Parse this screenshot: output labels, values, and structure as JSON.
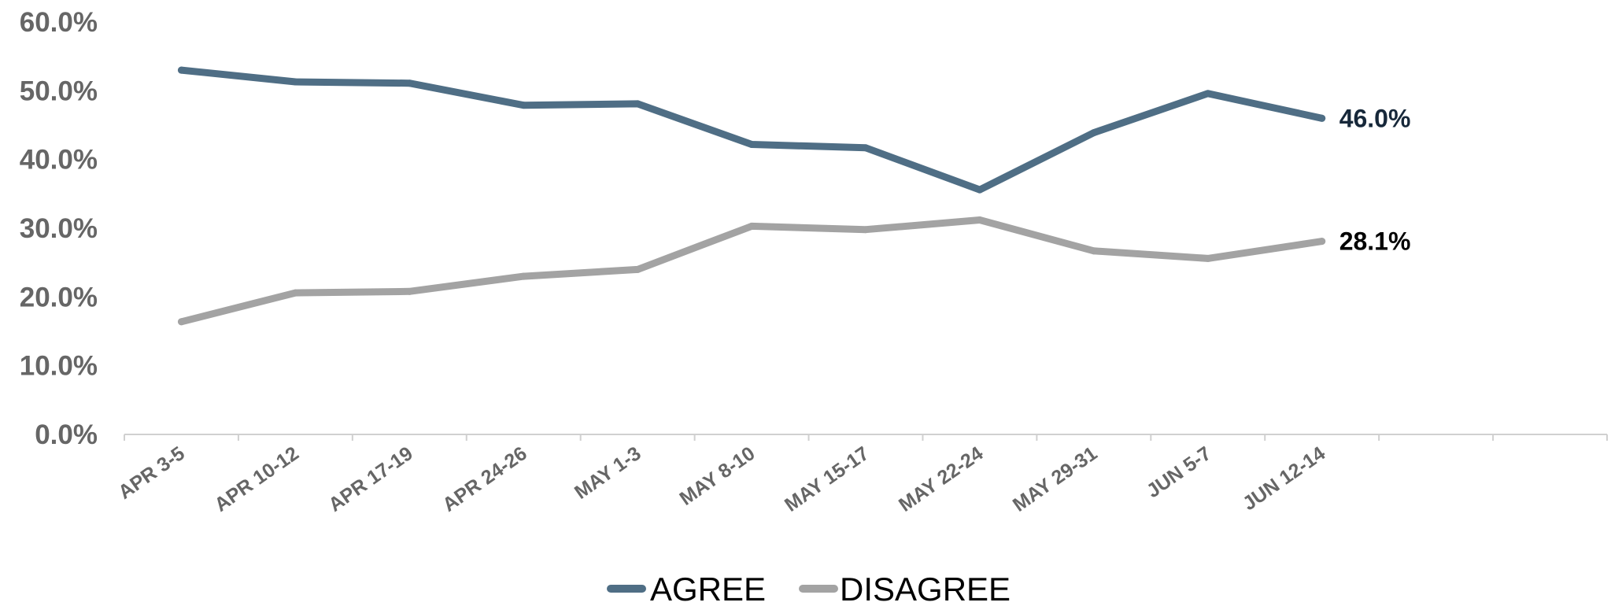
{
  "chart_data": {
    "type": "line",
    "title": "",
    "xlabel": "",
    "ylabel": "",
    "categories": [
      "APR 3-5",
      "APR 10-12",
      "APR 17-19",
      "APR 24-26",
      "MAY 1-3",
      "MAY 8-10",
      "MAY 15-17",
      "MAY 22-24",
      "MAY 29-31",
      "JUN 5-7",
      "JUN 12-14"
    ],
    "axis_slots": 13,
    "ylim": [
      0,
      60
    ],
    "yticks": [
      0,
      10,
      20,
      30,
      40,
      50,
      60
    ],
    "ytick_labels": [
      "0.0%",
      "10.0%",
      "20.0%",
      "30.0%",
      "40.0%",
      "50.0%",
      "60.0%"
    ],
    "grid": false,
    "legend_position": "bottom",
    "series": [
      {
        "name": "AGREE",
        "color": "#4f6e85",
        "label_color": "#17283a",
        "values": [
          53.0,
          51.3,
          51.1,
          47.9,
          48.1,
          42.2,
          41.7,
          35.6,
          43.9,
          49.6,
          46.0
        ],
        "end_label": "46.0%"
      },
      {
        "name": "DISAGREE",
        "color": "#a3a3a3",
        "label_color": "#000000",
        "values": [
          16.4,
          20.6,
          20.8,
          23.0,
          24.0,
          30.3,
          29.8,
          31.2,
          26.7,
          25.6,
          28.1
        ],
        "end_label": "28.1%"
      }
    ]
  }
}
